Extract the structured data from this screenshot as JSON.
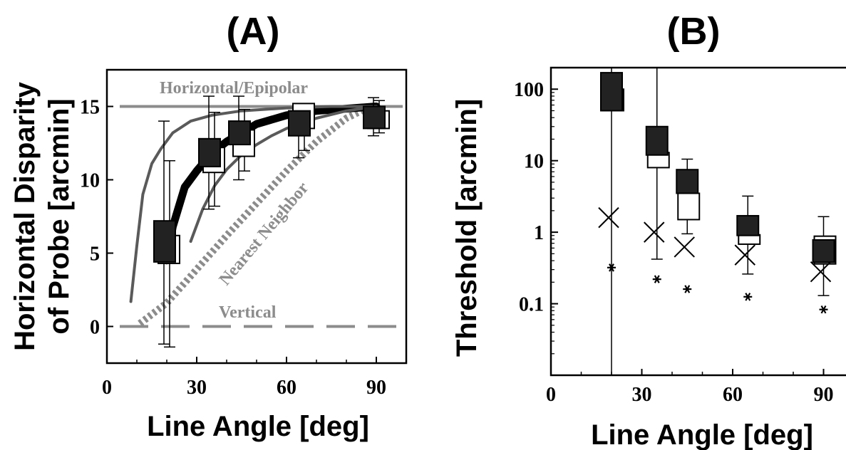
{
  "chart_data": [
    {
      "panel": "(A)",
      "type": "line",
      "title": "",
      "xlabel": "Line Angle [deg]",
      "ylabel_lines": [
        "Horizontal Disparity",
        "of Probe [arcmin]"
      ],
      "xlim": [
        0,
        100
      ],
      "ylim": [
        -2.5,
        17.5
      ],
      "xticks": [
        0,
        30,
        60,
        90
      ],
      "yticks": [
        0,
        5,
        10,
        15
      ],
      "grid": false,
      "reference_lines": [
        {
          "label": "Horizontal/Epipolar",
          "y": 15,
          "style": "solid",
          "color": "#8c8c8c"
        },
        {
          "label": "Vertical",
          "y": 0,
          "style": "dashed",
          "color": "#8c8c8c"
        }
      ],
      "series": [
        {
          "label": "Nearest Neighbor",
          "style": "dotted",
          "color": "#8c8c8c",
          "x": [
            11,
            20,
            30,
            40,
            50,
            60,
            70,
            80,
            88
          ],
          "y": [
            0.2,
            1.6,
            3.9,
            6.2,
            8.4,
            10.6,
            12.6,
            14.2,
            15
          ]
        },
        {
          "style": "thick",
          "color": "#000000",
          "x": [
            20,
            22,
            26,
            30,
            35,
            40,
            45,
            50,
            60,
            70,
            80,
            90
          ],
          "y": [
            4.5,
            6.8,
            9.5,
            10.6,
            11.8,
            12.6,
            13.2,
            13.8,
            14.4,
            14.7,
            14.85,
            15
          ]
        },
        {
          "style": "thin",
          "color": "#5a5a5a",
          "x": [
            8,
            10,
            12,
            15,
            18,
            22,
            28,
            35,
            45,
            60,
            75,
            90
          ],
          "y": [
            1.7,
            5.5,
            9,
            11.1,
            12.1,
            13.2,
            14,
            14.4,
            14.7,
            14.9,
            15,
            15
          ]
        },
        {
          "style": "thin",
          "color": "#5a5a5a",
          "x": [
            28,
            32,
            36,
            40,
            45,
            50,
            55,
            60,
            70,
            80,
            90
          ],
          "y": [
            5.8,
            8,
            9.6,
            10.7,
            11.7,
            12.4,
            13,
            13.5,
            14.2,
            14.7,
            15
          ]
        }
      ],
      "boxes": {
        "x": [
          20,
          35,
          45,
          65,
          90
        ],
        "filled": [
          [
            4.4,
            7.2
          ],
          [
            10.9,
            12.8
          ],
          [
            12.4,
            14
          ],
          [
            13,
            14.7
          ],
          [
            13.5,
            15
          ]
        ],
        "open": [
          [
            4.3,
            6.2
          ],
          [
            10.5,
            12.2
          ],
          [
            11.6,
            13.4
          ],
          [
            13.5,
            15.2
          ],
          [
            13.5,
            14.7
          ]
        ],
        "whiskers": [
          [
            -1.2,
            14
          ],
          [
            8,
            15.7
          ],
          [
            10,
            15.7
          ],
          [
            11.5,
            15.2
          ],
          [
            13,
            15.6
          ]
        ],
        "whiskers_open": [
          [
            -1.4,
            11.3
          ],
          [
            8.2,
            14.6
          ],
          [
            10.6,
            14.8
          ],
          [
            12,
            14.6
          ],
          [
            13.2,
            15.4
          ]
        ]
      }
    },
    {
      "panel": "(B)",
      "type": "scatter",
      "title": "",
      "xlabel": "Line Angle [deg]",
      "ylabel": "Threshold [arcmin]",
      "yscale": "log",
      "xlim": [
        0,
        100
      ],
      "ylim": [
        0.01,
        200
      ],
      "xticks": [
        0,
        30,
        60,
        90
      ],
      "yticks": [
        0.1,
        1,
        10,
        100
      ],
      "ytick_labels": [
        "0.1",
        "1",
        "10",
        "100"
      ],
      "grid": false,
      "boxes": {
        "x": [
          20,
          35,
          45,
          65,
          90
        ],
        "filled": [
          [
            50,
            170
          ],
          [
            12,
            30
          ],
          [
            3.5,
            7.5
          ],
          [
            0.9,
            1.7
          ],
          [
            0.38,
            0.78
          ]
        ],
        "open": [
          [
            50,
            100
          ],
          [
            8,
            13
          ],
          [
            1.5,
            3.5
          ],
          [
            0.68,
            0.92
          ],
          [
            0.36,
            0.88
          ]
        ],
        "whiskers": [
          [
            0.01,
            200
          ],
          [
            0.42,
            200
          ],
          [
            0.95,
            10.5
          ],
          [
            0.26,
            3.2
          ],
          [
            0.13,
            1.65
          ]
        ]
      },
      "x_markers": {
        "x": [
          20,
          35,
          45,
          65,
          90
        ],
        "y": [
          1.6,
          1.0,
          0.62,
          0.48,
          0.28
        ]
      },
      "star_markers": {
        "x": [
          20,
          35,
          45,
          65,
          90
        ],
        "y": [
          0.32,
          0.22,
          0.16,
          0.125,
          0.083
        ]
      }
    }
  ]
}
